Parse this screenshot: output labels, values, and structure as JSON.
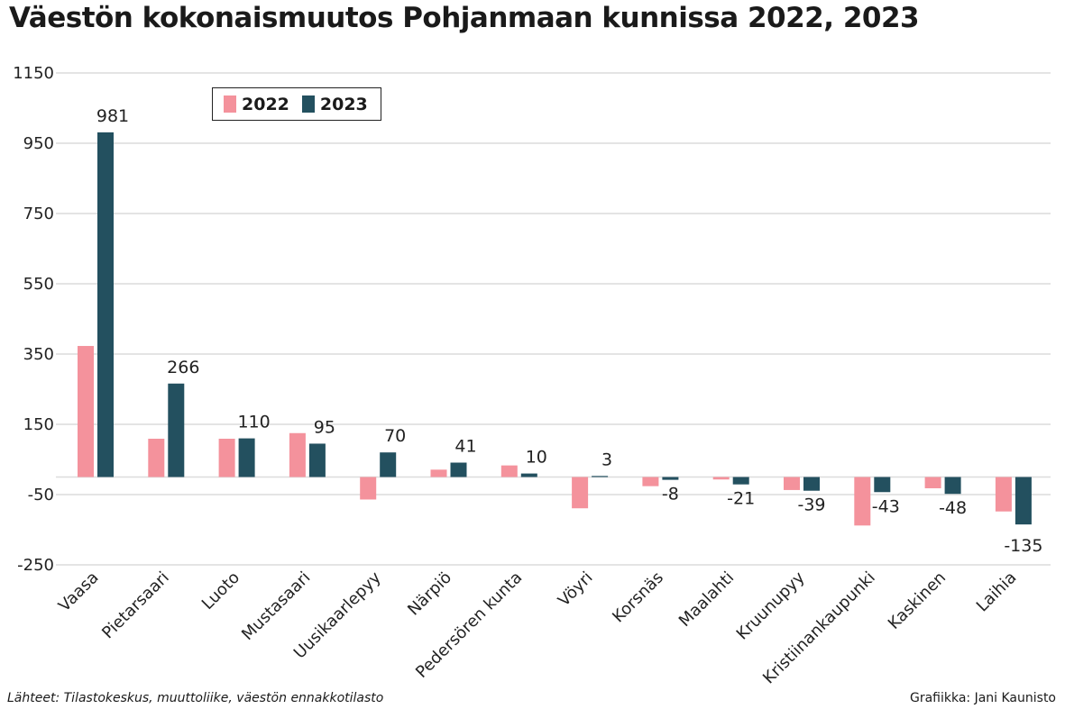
{
  "chart_data": {
    "type": "bar",
    "title": "Väestön kokonaismuutos Pohjanmaan kunnissa 2022, 2023",
    "xlabel": "",
    "ylabel": "",
    "ylim": [
      -250,
      1150
    ],
    "yticks": [
      1150,
      950,
      750,
      550,
      350,
      150,
      -50,
      -250
    ],
    "grid": true,
    "legend_position": "top-left",
    "categories": [
      "Vaasa",
      "Pietarsaari",
      "Luoto",
      "Mustasaari",
      "Uusikaarlepyy",
      "Närpiö",
      "Pedersören kunta",
      "Vöyri",
      "Korsnäs",
      "Maalahti",
      "Kruunupyy",
      "Kristiinankaupunki",
      "Kaskinen",
      "Laihia"
    ],
    "series": [
      {
        "name": "2022",
        "color": "#f4929c",
        "values": [
          373,
          109,
          109,
          125,
          -64,
          21,
          33,
          -89,
          -26,
          -7,
          -37,
          -138,
          -32,
          -98
        ]
      },
      {
        "name": "2023",
        "color": "#23505f",
        "values": [
          981,
          266,
          110,
          95,
          70,
          41,
          10,
          3,
          -8,
          -21,
          -39,
          -43,
          -48,
          -135
        ],
        "data_labels": [
          "981",
          "266",
          "110",
          "95",
          "70",
          "41",
          "10",
          "3",
          "-8",
          "-21",
          "-39",
          "-43",
          "-48",
          "-135"
        ]
      }
    ]
  },
  "footer": {
    "source": "Lähteet: Tilastokeskus, muuttoliike, väestön ennakkotilasto",
    "credit": "Grafiikka: Jani Kaunisto"
  }
}
